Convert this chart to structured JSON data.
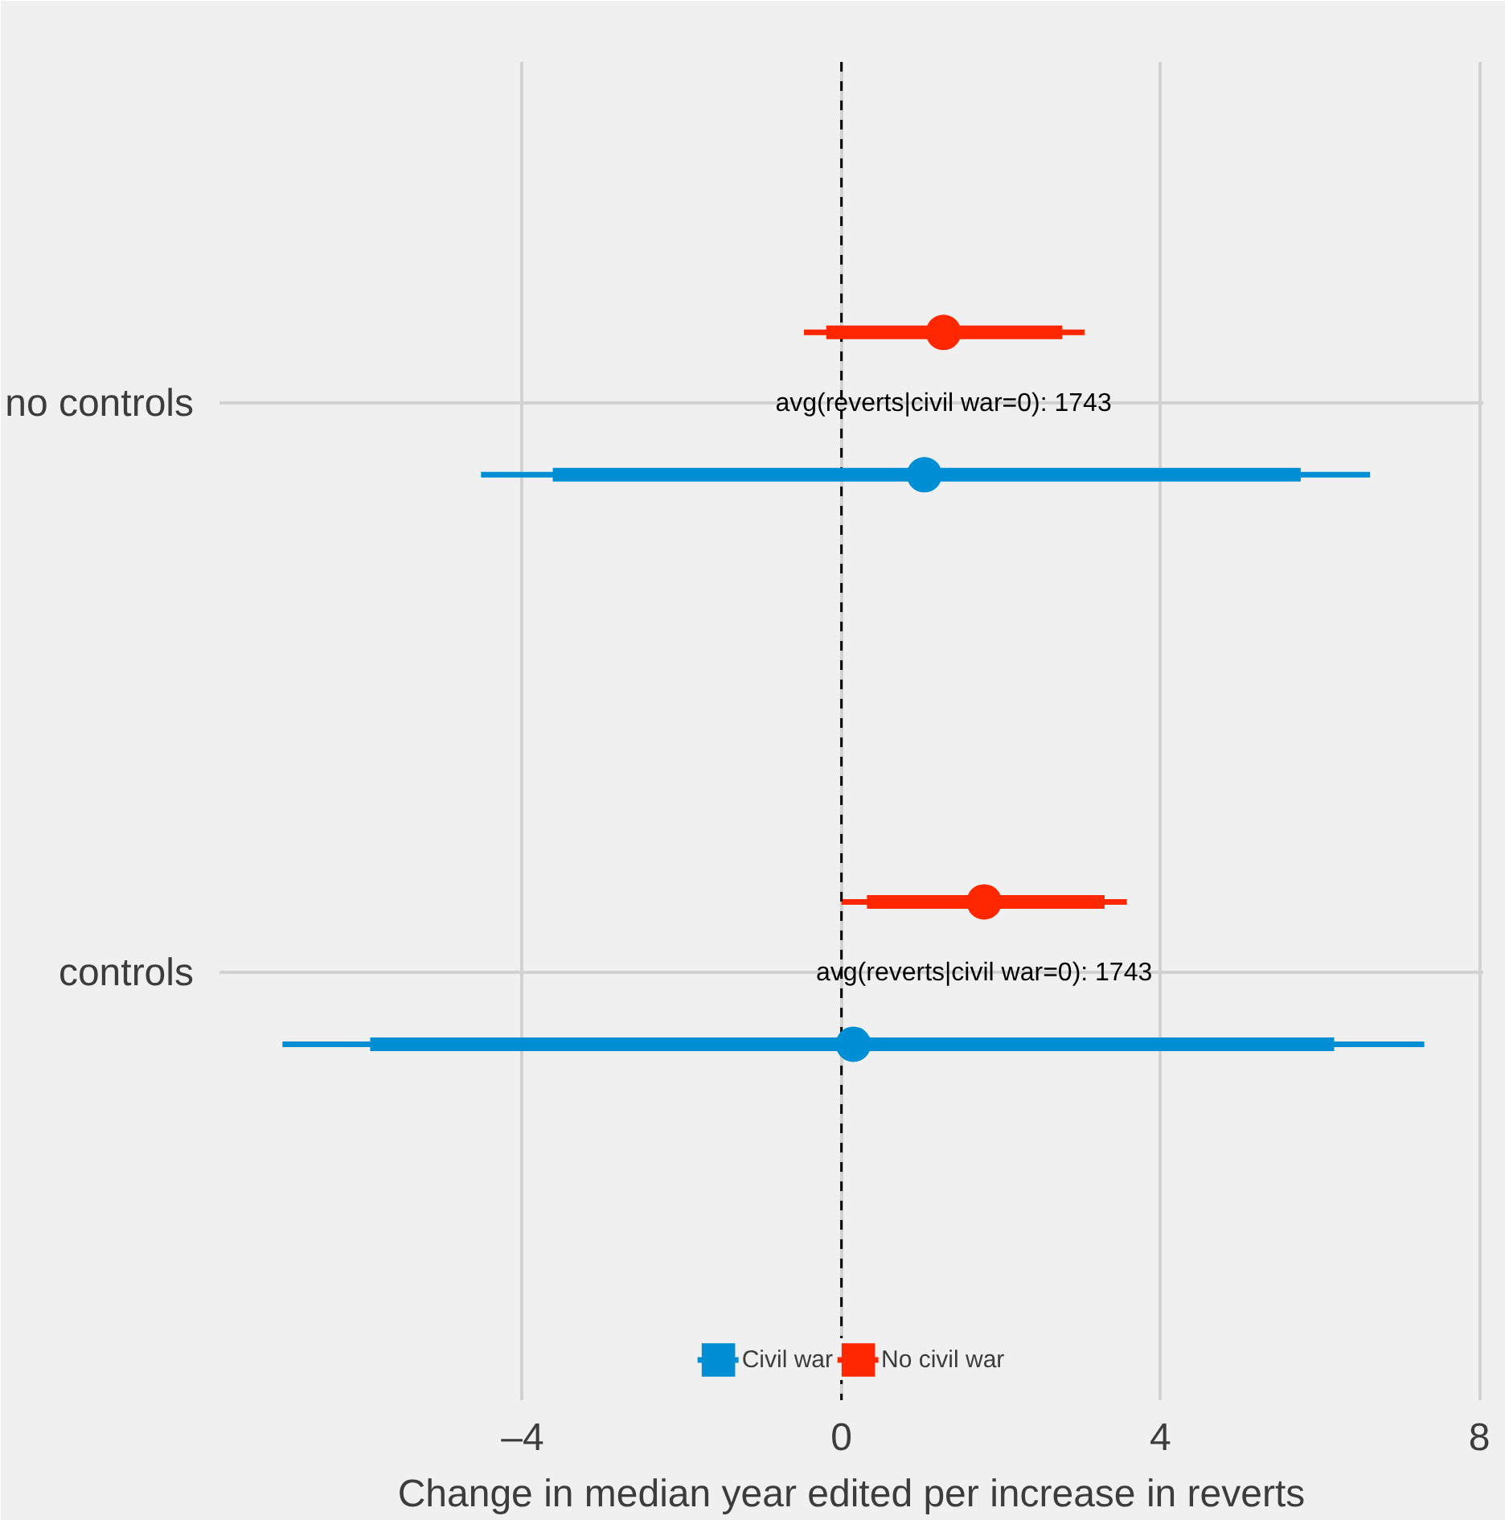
{
  "chart_data": {
    "type": "scatter",
    "orientation": "horizontal",
    "xlabel": "Change in median year edited per increase in reverts",
    "categories": [
      "no controls",
      "controls"
    ],
    "series": [
      {
        "name": "Civil war",
        "color": "#008fd5",
        "values": [
          1.04,
          0.15
        ],
        "errors": [
          [
            -4.52,
            6.63
          ],
          [
            -7.01,
            7.31
          ]
        ]
      },
      {
        "type": "bar",
        "color": "#008fd5",
        "base": [
          -3.62,
          -5.91
        ],
        "values": [
          9.38,
          12.09
        ]
      },
      {
        "name": "No civil war",
        "color": "#ff2700",
        "values": [
          1.28,
          1.79
        ],
        "errors": [
          [
            -0.47,
            3.05
          ],
          [
            0.0,
            3.58
          ]
        ]
      },
      {
        "type": "bar",
        "color": "#ff2700",
        "base": [
          -0.19,
          0.32
        ],
        "values": [
          2.96,
          2.98
        ]
      }
    ],
    "xlim": [
      -7.8,
      8.05
    ],
    "xticks": [
      {
        "value": -4,
        "label": "–4"
      },
      0,
      4,
      8
    ],
    "ref_lines": [
      {
        "axis": "x",
        "value": 0,
        "color": "#000000",
        "line_style": "dashed"
      }
    ],
    "annotations": [
      "avg(reverts|civil war=0): 1743",
      "avg(reverts|civil war=0): 1743"
    ],
    "marker": "circle",
    "grid": true,
    "legend": "bottom"
  }
}
